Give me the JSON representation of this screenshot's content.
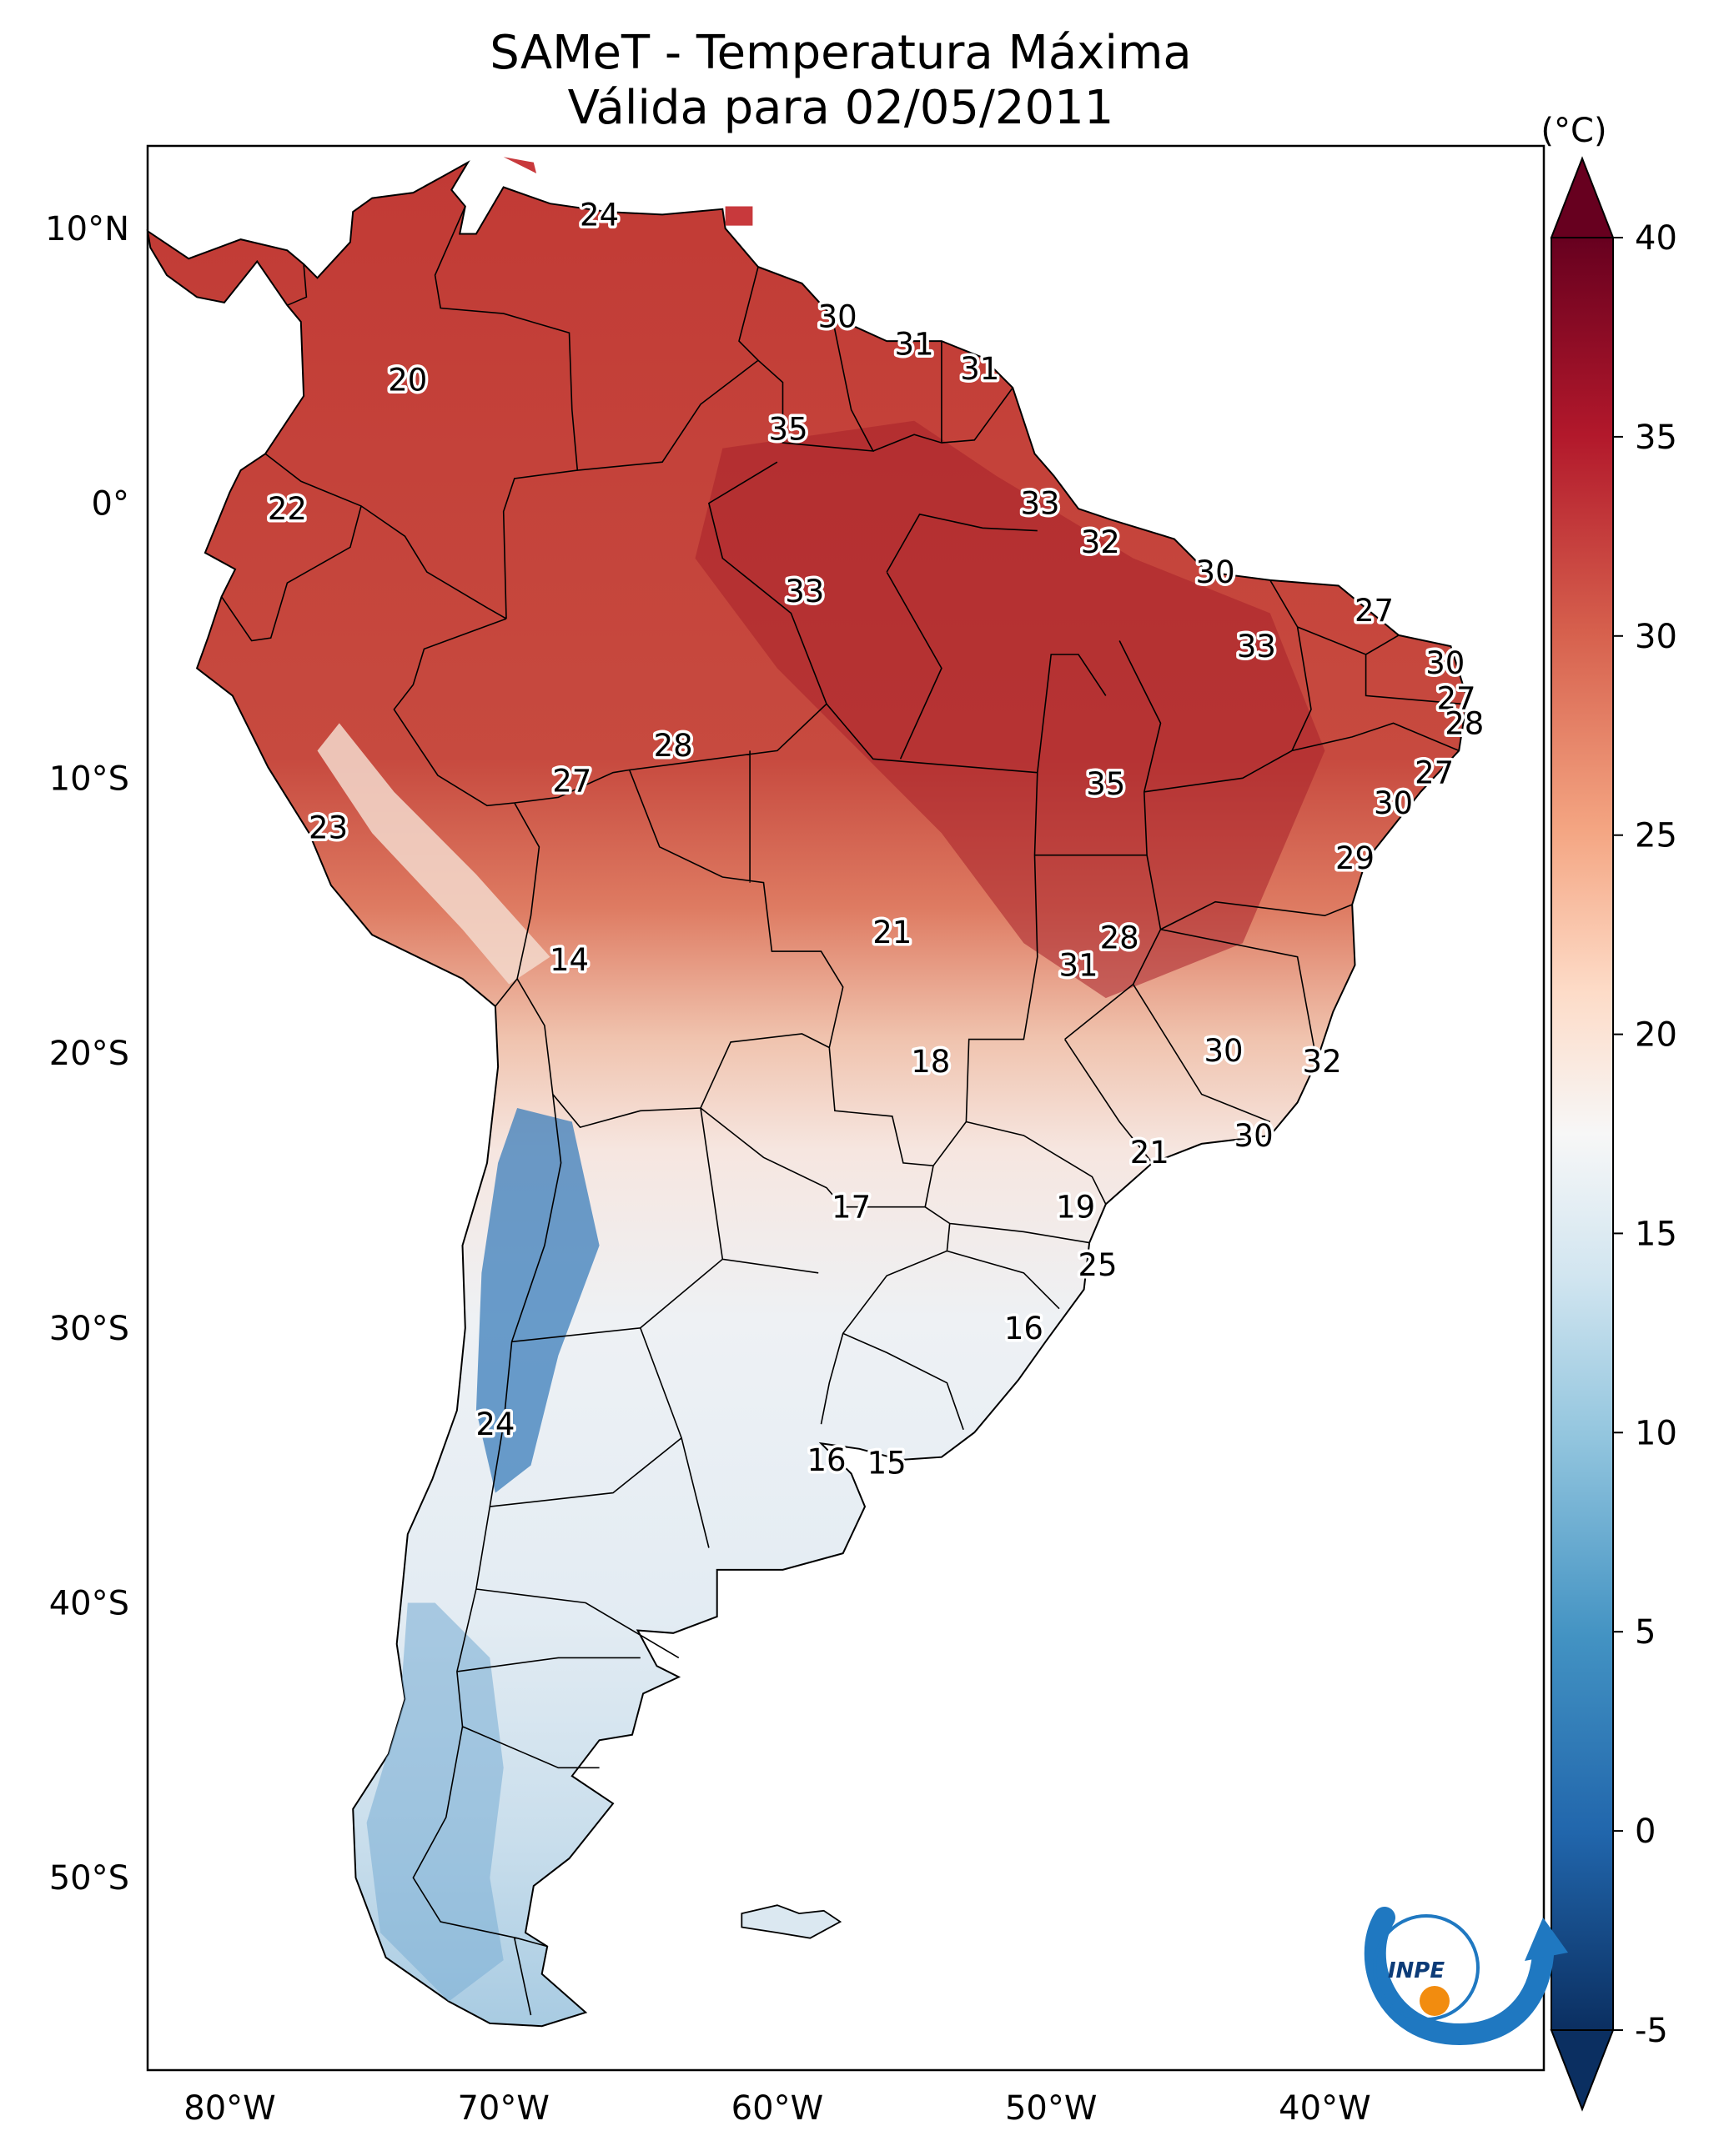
{
  "title": {
    "line1": "SAMeT - Temperatura Máxima",
    "line2": "Válida para 02/05/2011"
  },
  "colorbar": {
    "unit": "(°C)",
    "ticks": [
      "40",
      "35",
      "30",
      "25",
      "20",
      "15",
      "10",
      "5",
      "0",
      "-5"
    ],
    "min": -5,
    "max": 40
  },
  "axes": {
    "lat_ticks": [
      "10°N",
      "0°",
      "10°S",
      "20°S",
      "30°S",
      "40°S",
      "50°S"
    ],
    "lon_ticks": [
      "80°W",
      "70°W",
      "60°W",
      "50°W",
      "40°W"
    ]
  },
  "logo": {
    "text": "INPE"
  },
  "colors": {
    "warm_dark": "#8b0a1a",
    "warm": "#c6403b",
    "warm_mid": "#e0785e",
    "neutral": "#f4efed",
    "cool_light": "#cfe2ef",
    "cool": "#6da7cf",
    "cool_dark": "#2a64a4",
    "logo_blue": "#1f78c1",
    "logo_orange": "#f28c0f"
  },
  "temperature_labels": [
    {
      "value": "24",
      "lon": -66.5,
      "lat": 10.5
    },
    {
      "value": "30",
      "lon": -57.8,
      "lat": 6.8
    },
    {
      "value": "31",
      "lon": -55.0,
      "lat": 5.8
    },
    {
      "value": "31",
      "lon": -52.6,
      "lat": 4.9
    },
    {
      "value": "20",
      "lon": -73.5,
      "lat": 4.5
    },
    {
      "value": "35",
      "lon": -59.6,
      "lat": 2.7
    },
    {
      "value": "33",
      "lon": -50.4,
      "lat": 0.0
    },
    {
      "value": "22",
      "lon": -77.9,
      "lat": -0.2
    },
    {
      "value": "32",
      "lon": -48.2,
      "lat": -1.4
    },
    {
      "value": "30",
      "lon": -44.0,
      "lat": -2.5
    },
    {
      "value": "33",
      "lon": -59.0,
      "lat": -3.2
    },
    {
      "value": "27",
      "lon": -38.2,
      "lat": -3.9
    },
    {
      "value": "33",
      "lon": -42.5,
      "lat": -5.2
    },
    {
      "value": "30",
      "lon": -35.6,
      "lat": -5.8
    },
    {
      "value": "27",
      "lon": -35.2,
      "lat": -7.1
    },
    {
      "value": "28",
      "lon": -34.9,
      "lat": -8.0
    },
    {
      "value": "28",
      "lon": -63.8,
      "lat": -8.8
    },
    {
      "value": "27",
      "lon": -36.0,
      "lat": -9.8
    },
    {
      "value": "27",
      "lon": -67.5,
      "lat": -10.1
    },
    {
      "value": "35",
      "lon": -48.0,
      "lat": -10.2
    },
    {
      "value": "30",
      "lon": -37.5,
      "lat": -10.9
    },
    {
      "value": "23",
      "lon": -76.4,
      "lat": -11.8
    },
    {
      "value": "29",
      "lon": -38.9,
      "lat": -12.9
    },
    {
      "value": "21",
      "lon": -55.8,
      "lat": -15.6
    },
    {
      "value": "28",
      "lon": -47.5,
      "lat": -15.8
    },
    {
      "value": "31",
      "lon": -49.0,
      "lat": -16.8
    },
    {
      "value": "14",
      "lon": -67.6,
      "lat": -16.6
    },
    {
      "value": "30",
      "lon": -43.7,
      "lat": -19.9
    },
    {
      "value": "18",
      "lon": -54.4,
      "lat": -20.3
    },
    {
      "value": "32",
      "lon": -40.1,
      "lat": -20.3
    },
    {
      "value": "30",
      "lon": -42.6,
      "lat": -23.0
    },
    {
      "value": "21",
      "lon": -46.4,
      "lat": -23.6
    },
    {
      "value": "17",
      "lon": -57.3,
      "lat": -25.6
    },
    {
      "value": "19",
      "lon": -49.1,
      "lat": -25.6
    },
    {
      "value": "25",
      "lon": -48.3,
      "lat": -27.7
    },
    {
      "value": "16",
      "lon": -51.0,
      "lat": -30.0
    },
    {
      "value": "24",
      "lon": -70.3,
      "lat": -33.5
    },
    {
      "value": "16",
      "lon": -58.2,
      "lat": -34.8
    },
    {
      "value": "15",
      "lon": -56.0,
      "lat": -34.9
    }
  ]
}
